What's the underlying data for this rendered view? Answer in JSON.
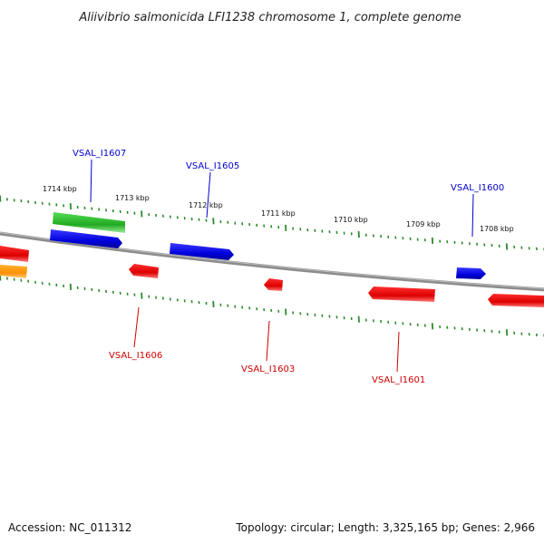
{
  "title": "Aliivibrio salmonicida LFI1238 chromosome 1, complete genome",
  "footer": {
    "accession": "Accession: NC_011312",
    "summary": "Topology: circular; Length: 3,325,165 bp; Genes: 2,966"
  },
  "colors": {
    "backbone": "#8c8c8c",
    "ticks": "#2e8b2e",
    "forward_gene": "#0000ee",
    "reverse_gene": "#ee0000",
    "rna_gene": "#33cc33",
    "other_gene": "#ff9900"
  },
  "kbp_labels": [
    "1714 kbp",
    "1713 kbp",
    "1712 kbp",
    "1711 kbp",
    "1710 kbp",
    "1709 kbp",
    "1708 kbp"
  ],
  "gene_labels": {
    "top": [
      "VSAL_I1607",
      "VSAL_I1605",
      "VSAL_I1600"
    ],
    "bottom": [
      "VSAL_I1606",
      "VSAL_I1603",
      "VSAL_I1601"
    ]
  }
}
